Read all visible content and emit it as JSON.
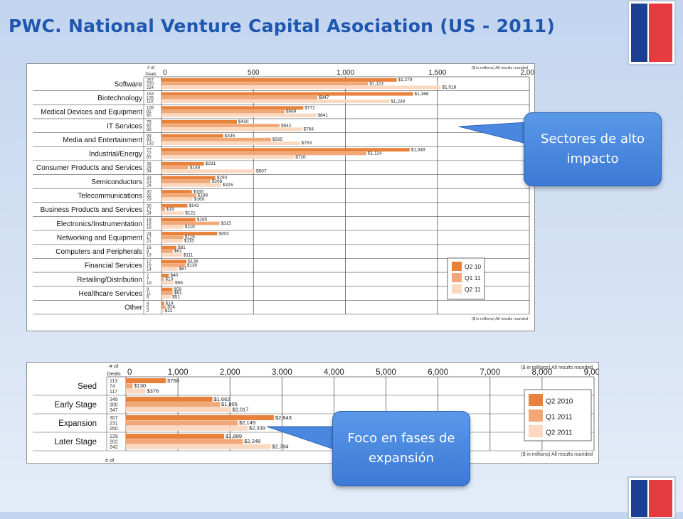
{
  "title": "PWC. National Venture Capital Asociation (US -  2011)",
  "colors": {
    "q1": "#e8823a",
    "q2": "#f0a878",
    "q3": "#fbd9c0",
    "callout": "#4a88e0",
    "title": "#1f57b0"
  },
  "callouts": {
    "high_impact": {
      "line1": "Sectores de alto",
      "line2": "impacto"
    },
    "expansion": {
      "line1": "Foco en fases de",
      "line2": "expansión"
    }
  },
  "chart_data": [
    {
      "type": "bar",
      "orientation": "horizontal",
      "ylabel": "# of Deals",
      "note": "($ in millions) All results rounded",
      "xlim": [
        0,
        2000
      ],
      "xticks": [
        "0",
        "500",
        "1,000",
        "1,500",
        "2,000"
      ],
      "legend": {
        "position": "bottom-right",
        "entries": [
          "Q2 10",
          "Q1 11",
          "Q2 11"
        ]
      },
      "categories": [
        "Software",
        "Biotechnology",
        "Medical Devices and Equipment",
        "IT Services",
        "Media and Entertainment",
        "Industrial/Energy",
        "Consumer Products and Services",
        "Semiconductors",
        "Telecommunications",
        "Business Products and Services",
        "Electronics/Instrumentation",
        "Networking and Equipment",
        "Computers and Peripherals",
        "Financial Services",
        "Retailing/Distribution",
        "Healthcare Services",
        "Other"
      ],
      "deals": [
        [
          "257",
          "220",
          "224"
        ],
        [
          "153",
          "105",
          "116"
        ],
        [
          "108",
          "81",
          "80"
        ],
        [
          "79",
          "82",
          "83"
        ],
        [
          "99",
          "83",
          "132"
        ],
        [
          "77",
          "77",
          "85"
        ],
        [
          "36",
          "28",
          "34"
        ],
        [
          "33",
          "23",
          "24"
        ],
        [
          "30",
          "32",
          "29"
        ],
        [
          "30",
          "17",
          "24"
        ],
        [
          "19",
          "18",
          "18"
        ],
        [
          "24",
          "17",
          "21"
        ],
        [
          "16",
          "8",
          "13"
        ],
        [
          "17",
          "16",
          "14"
        ],
        [
          "7",
          "7",
          "19"
        ],
        [
          "9",
          "11",
          "8"
        ],
        [
          "4",
          "5",
          "2"
        ]
      ],
      "series": [
        {
          "name": "Q2 10",
          "values": [
            1279,
            1368,
            771,
            410,
            335,
            1349,
            231,
            293,
            165,
            141,
            185,
            303,
            81,
            136,
            40,
            59,
            14
          ],
          "labels": [
            "$1,279",
            "$1,368",
            "$771",
            "$410",
            "$335",
            "$1,349",
            "$231",
            "$293",
            "$165",
            "$141",
            "$185",
            "$303",
            "$81",
            "$136",
            "$40",
            "$59",
            "$14"
          ]
        },
        {
          "name": "Q1 11",
          "values": [
            1123,
            847,
            669,
            642,
            595,
            1114,
            146,
            266,
            188,
            19,
            315,
            119,
            61,
            130,
            13,
            61,
            24
          ],
          "labels": [
            "$1,123",
            "$847",
            "$669",
            "$642",
            "$595",
            "$1,114",
            "$146",
            "$266",
            "$188",
            "$19",
            "$315",
            "$119",
            "$61",
            "$130",
            "$13",
            "$61",
            "$24"
          ]
        },
        {
          "name": "Q2 11",
          "values": [
            1518,
            1239,
            841,
            764,
            753,
            720,
            507,
            325,
            169,
            121,
            119,
            115,
            111,
            87,
            66,
            51,
            11
          ],
          "labels": [
            "$1,518",
            "$1,239",
            "$841",
            "$764",
            "$753",
            "$720",
            "$507",
            "$325",
            "$169",
            "$121",
            "$119",
            "$115",
            "$111",
            "$87",
            "$66",
            "$51",
            "$11"
          ]
        }
      ]
    },
    {
      "type": "bar",
      "orientation": "horizontal",
      "ylabel": "# of Deals",
      "note": "($ in millions) All results rounded",
      "xlim": [
        0,
        9000
      ],
      "xticks": [
        "0",
        "1,000",
        "2,000",
        "3,000",
        "4,000",
        "5,000",
        "6,000",
        "7,000",
        "8,000",
        "9,000"
      ],
      "legend": {
        "position": "right",
        "entries": [
          "Q2 2010",
          "Q1 2011",
          "Q2 2011"
        ]
      },
      "categories": [
        "Seed",
        "Early Stage",
        "Expansion",
        "Later Stage"
      ],
      "footer": "# of",
      "deals": [
        [
          "113",
          "74",
          "117"
        ],
        [
          "349",
          "300",
          "347"
        ],
        [
          "307",
          "231",
          "260"
        ],
        [
          "229",
          "202",
          "242"
        ]
      ],
      "series": [
        {
          "name": "Q2 2010",
          "values": [
            768,
            1662,
            2843,
            1889
          ],
          "labels": [
            "$768",
            "$1,662",
            "$2,843",
            "$1,889"
          ]
        },
        {
          "name": "Q1 2011",
          "values": [
            130,
            1805,
            2149,
            2248
          ],
          "labels": [
            "$130",
            "$1,805",
            "$2,149",
            "$2,248"
          ]
        },
        {
          "name": "Q2 2011",
          "values": [
            376,
            2017,
            2339,
            2784
          ],
          "labels": [
            "$376",
            "$2,017",
            "$2,339",
            "$2,784"
          ]
        }
      ]
    }
  ]
}
